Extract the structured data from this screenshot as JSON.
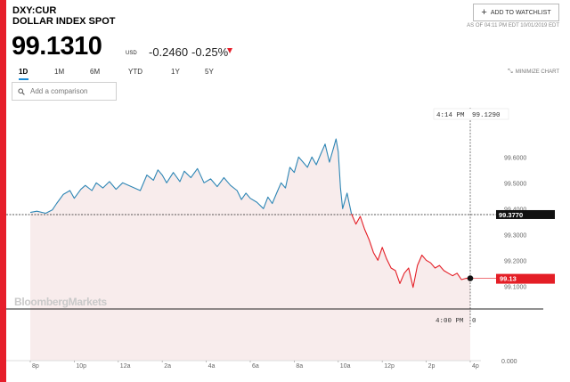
{
  "header": {
    "ticker": "DXY:CUR",
    "name": "DOLLAR INDEX SPOT",
    "price": "99.1310",
    "currency": "USD",
    "change": "-0.2460",
    "change_pct": "-0.25%",
    "watchlist_label": "ADD TO WATCHLIST",
    "as_of": "AS OF 04:11 PM EDT 10/01/2019 EDT"
  },
  "range_tabs": [
    {
      "label": "1D",
      "active": true
    },
    {
      "label": "1M",
      "active": false
    },
    {
      "label": "6M",
      "active": false
    },
    {
      "label": "YTD",
      "active": false
    },
    {
      "label": "1Y",
      "active": false
    },
    {
      "label": "5Y",
      "active": false
    }
  ],
  "minimize_label": "MINIMIZE CHART",
  "comparison": {
    "placeholder": "Add a comparison"
  },
  "watermark": "BloombergMarkets",
  "colors": {
    "accent": "#e61e2a",
    "up_line": "#2e86b5",
    "down_line": "#e41e26",
    "area_fill": "#f8ecec",
    "tab_underline": "#1a8cd8"
  },
  "chart_data": {
    "type": "line",
    "ylim": [
      99.07,
      99.67
    ],
    "y_ticks": [
      "99.6000",
      "99.5000",
      "99.4000",
      "99.3000",
      "99.2000",
      "99.1000"
    ],
    "y_floor_label": "0.000",
    "x_ticks": [
      "8p",
      "10p",
      "12a",
      "2a",
      "4a",
      "6a",
      "8a",
      "10a",
      "12p",
      "2p",
      "4p"
    ],
    "x_hours": [
      0,
      2,
      4,
      6,
      8,
      10,
      12,
      14,
      16,
      18,
      20
    ],
    "reference_level": 99.377,
    "reference_label": "99.3770",
    "current_value": 99.13,
    "current_label": "99.13",
    "crosshair_time_label": "4:14 PM",
    "crosshair_value_label": "99.1290",
    "bottom_time_label": "4:00 PM",
    "bottom_value_label": "0",
    "series": [
      {
        "color_key": "up_line",
        "x": [
          0,
          0.3,
          0.7,
          1.0,
          1.2,
          1.5,
          1.8,
          2.0,
          2.3,
          2.5,
          2.8,
          3.0,
          3.3,
          3.6,
          3.9,
          4.2,
          4.6,
          5.0,
          5.3,
          5.6,
          5.8,
          6.0,
          6.2,
          6.5,
          6.8,
          7.0,
          7.3,
          7.6,
          7.9,
          8.2,
          8.5,
          8.8,
          9.1,
          9.4,
          9.6,
          9.8,
          10.0,
          10.3,
          10.6,
          10.8,
          11.0,
          11.2,
          11.4,
          11.6,
          11.8,
          12.0,
          12.2,
          12.4,
          12.6,
          12.8,
          13.0,
          13.2,
          13.4,
          13.6,
          13.8,
          13.9,
          14.0,
          14.1,
          14.2,
          14.4,
          14.6
        ],
        "y": [
          99.385,
          99.39,
          99.382,
          99.395,
          99.42,
          99.455,
          99.47,
          99.44,
          99.475,
          99.49,
          99.47,
          99.5,
          99.48,
          99.505,
          99.475,
          99.5,
          99.485,
          99.47,
          99.53,
          99.51,
          99.55,
          99.53,
          99.5,
          99.54,
          99.505,
          99.545,
          99.52,
          99.555,
          99.5,
          99.515,
          99.485,
          99.52,
          99.49,
          99.47,
          99.435,
          99.46,
          99.44,
          99.425,
          99.4,
          99.445,
          99.42,
          99.46,
          99.5,
          99.48,
          99.56,
          99.54,
          99.6,
          99.58,
          99.56,
          99.6,
          99.57,
          99.61,
          99.65,
          99.58,
          99.64,
          99.67,
          99.62,
          99.48,
          99.4,
          99.46,
          99.38
        ]
      },
      {
        "color_key": "down_line",
        "x": [
          14.6,
          14.8,
          15.0,
          15.2,
          15.4,
          15.6,
          15.8,
          16.0,
          16.2,
          16.4,
          16.6,
          16.8,
          17.0,
          17.2,
          17.4,
          17.6,
          17.8,
          18.0,
          18.2,
          18.4,
          18.6,
          18.8,
          19.0,
          19.2,
          19.4,
          19.6,
          19.8,
          20.0
        ],
        "y": [
          99.38,
          99.34,
          99.37,
          99.32,
          99.28,
          99.23,
          99.2,
          99.25,
          99.205,
          99.17,
          99.16,
          99.11,
          99.15,
          99.17,
          99.095,
          99.18,
          99.22,
          99.2,
          99.19,
          99.17,
          99.18,
          99.16,
          99.15,
          99.14,
          99.15,
          99.125,
          99.13,
          99.131
        ]
      }
    ]
  }
}
